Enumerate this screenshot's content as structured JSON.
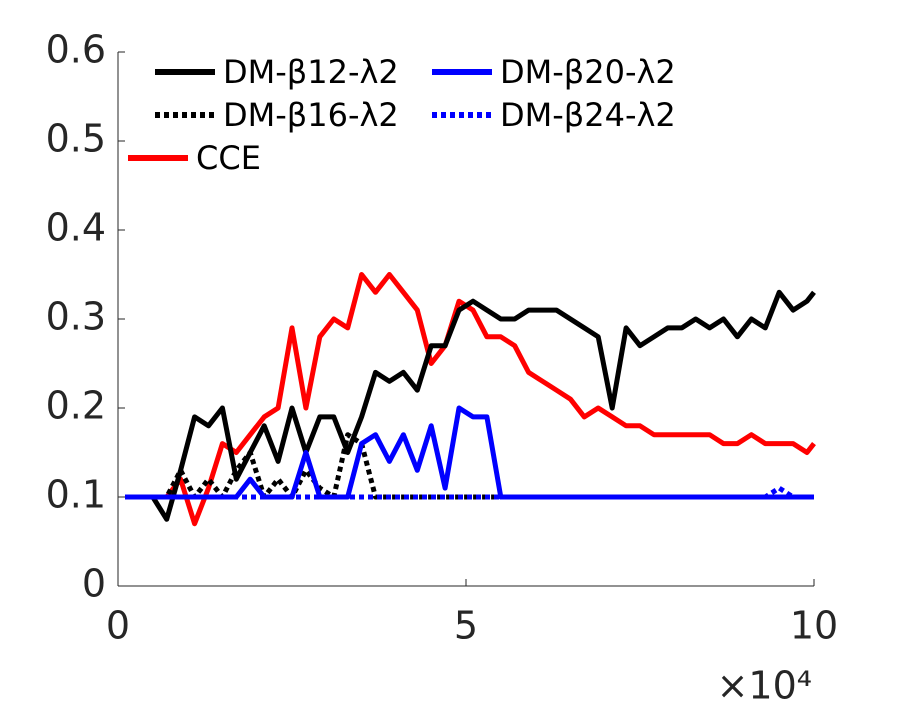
{
  "chart_data": {
    "type": "line",
    "x": [
      1000,
      3000,
      5000,
      7000,
      9000,
      11000,
      13000,
      15000,
      17000,
      19000,
      21000,
      23000,
      25000,
      27000,
      29000,
      31000,
      33000,
      35000,
      37000,
      39000,
      41000,
      43000,
      45000,
      47000,
      49000,
      51000,
      53000,
      55000,
      57000,
      59000,
      61000,
      63000,
      65000,
      67000,
      69000,
      71000,
      73000,
      75000,
      77000,
      79000,
      81000,
      83000,
      85000,
      87000,
      89000,
      91000,
      93000,
      95000,
      97000,
      99000,
      100000
    ],
    "series": [
      {
        "name": "DM-β12-λ2",
        "color": "#000000",
        "style": "solid",
        "values": [
          0.1,
          0.1,
          0.1,
          0.075,
          0.13,
          0.19,
          0.18,
          0.2,
          0.12,
          0.15,
          0.18,
          0.14,
          0.2,
          0.15,
          0.19,
          0.19,
          0.15,
          0.19,
          0.24,
          0.23,
          0.24,
          0.22,
          0.27,
          0.27,
          0.31,
          0.32,
          0.31,
          0.3,
          0.3,
          0.31,
          0.31,
          0.31,
          0.3,
          0.29,
          0.28,
          0.2,
          0.29,
          0.27,
          0.28,
          0.29,
          0.29,
          0.3,
          0.29,
          0.3,
          0.28,
          0.3,
          0.29,
          0.33,
          0.31,
          0.32,
          0.33
        ]
      },
      {
        "name": "DM-β16-λ2",
        "color": "#000000",
        "style": "dotted",
        "values": [
          0.1,
          0.1,
          0.1,
          0.1,
          0.13,
          0.1,
          0.12,
          0.1,
          0.13,
          0.15,
          0.1,
          0.12,
          0.1,
          0.13,
          0.11,
          0.1,
          0.17,
          0.16,
          0.1,
          0.1,
          0.1,
          0.1,
          0.1,
          0.1,
          0.1,
          0.1,
          0.1,
          0.1,
          0.1,
          0.1,
          0.1,
          0.1,
          0.1,
          0.1,
          0.1,
          0.1,
          0.1,
          0.1,
          0.1,
          0.1,
          0.1,
          0.1,
          0.1,
          0.1,
          0.1,
          0.1,
          0.1,
          0.1,
          0.1,
          0.1,
          0.1
        ]
      },
      {
        "name": "DM-β20-λ2",
        "color": "#0000ff",
        "style": "solid",
        "values": [
          0.1,
          0.1,
          0.1,
          0.1,
          0.1,
          0.1,
          0.1,
          0.1,
          0.1,
          0.12,
          0.1,
          0.1,
          0.1,
          0.15,
          0.1,
          0.1,
          0.1,
          0.16,
          0.17,
          0.14,
          0.17,
          0.13,
          0.18,
          0.11,
          0.2,
          0.19,
          0.19,
          0.1,
          0.1,
          0.1,
          0.1,
          0.1,
          0.1,
          0.1,
          0.1,
          0.1,
          0.1,
          0.1,
          0.1,
          0.1,
          0.1,
          0.1,
          0.1,
          0.1,
          0.1,
          0.1,
          0.1,
          0.1,
          0.1,
          0.1,
          0.1
        ]
      },
      {
        "name": "DM-β24-λ2",
        "color": "#0000ff",
        "style": "dotted",
        "values": [
          0.1,
          0.1,
          0.1,
          0.1,
          0.1,
          0.1,
          0.1,
          0.1,
          0.1,
          0.1,
          0.1,
          0.1,
          0.1,
          0.1,
          0.1,
          0.1,
          0.1,
          0.1,
          0.1,
          0.1,
          0.1,
          0.1,
          0.1,
          0.1,
          0.1,
          0.1,
          0.1,
          0.1,
          0.1,
          0.1,
          0.1,
          0.1,
          0.1,
          0.1,
          0.1,
          0.1,
          0.1,
          0.1,
          0.1,
          0.1,
          0.1,
          0.1,
          0.1,
          0.1,
          0.1,
          0.1,
          0.1,
          0.11,
          0.1,
          0.1,
          0.1
        ]
      },
      {
        "name": "CCE",
        "color": "#ff0000",
        "style": "solid",
        "values": [
          0.1,
          0.1,
          0.1,
          0.1,
          0.12,
          0.07,
          0.11,
          0.16,
          0.15,
          0.17,
          0.19,
          0.2,
          0.29,
          0.2,
          0.28,
          0.3,
          0.29,
          0.35,
          0.33,
          0.35,
          0.33,
          0.31,
          0.25,
          0.27,
          0.32,
          0.31,
          0.28,
          0.28,
          0.27,
          0.24,
          0.23,
          0.22,
          0.21,
          0.19,
          0.2,
          0.19,
          0.18,
          0.18,
          0.17,
          0.17,
          0.17,
          0.17,
          0.17,
          0.16,
          0.16,
          0.17,
          0.16,
          0.16,
          0.16,
          0.15,
          0.16
        ]
      }
    ],
    "xlim": [
      0,
      100000
    ],
    "xticks": [
      0,
      {
        "value": 50000,
        "label": "5"
      },
      {
        "value": 100000,
        "label": "10"
      }
    ],
    "x_multiplier": "×10⁴",
    "ylim": [
      0,
      0.6
    ],
    "yticks": [
      0,
      0.1,
      0.2,
      0.3,
      0.4,
      0.5,
      0.6
    ],
    "legend": "upper-left"
  }
}
